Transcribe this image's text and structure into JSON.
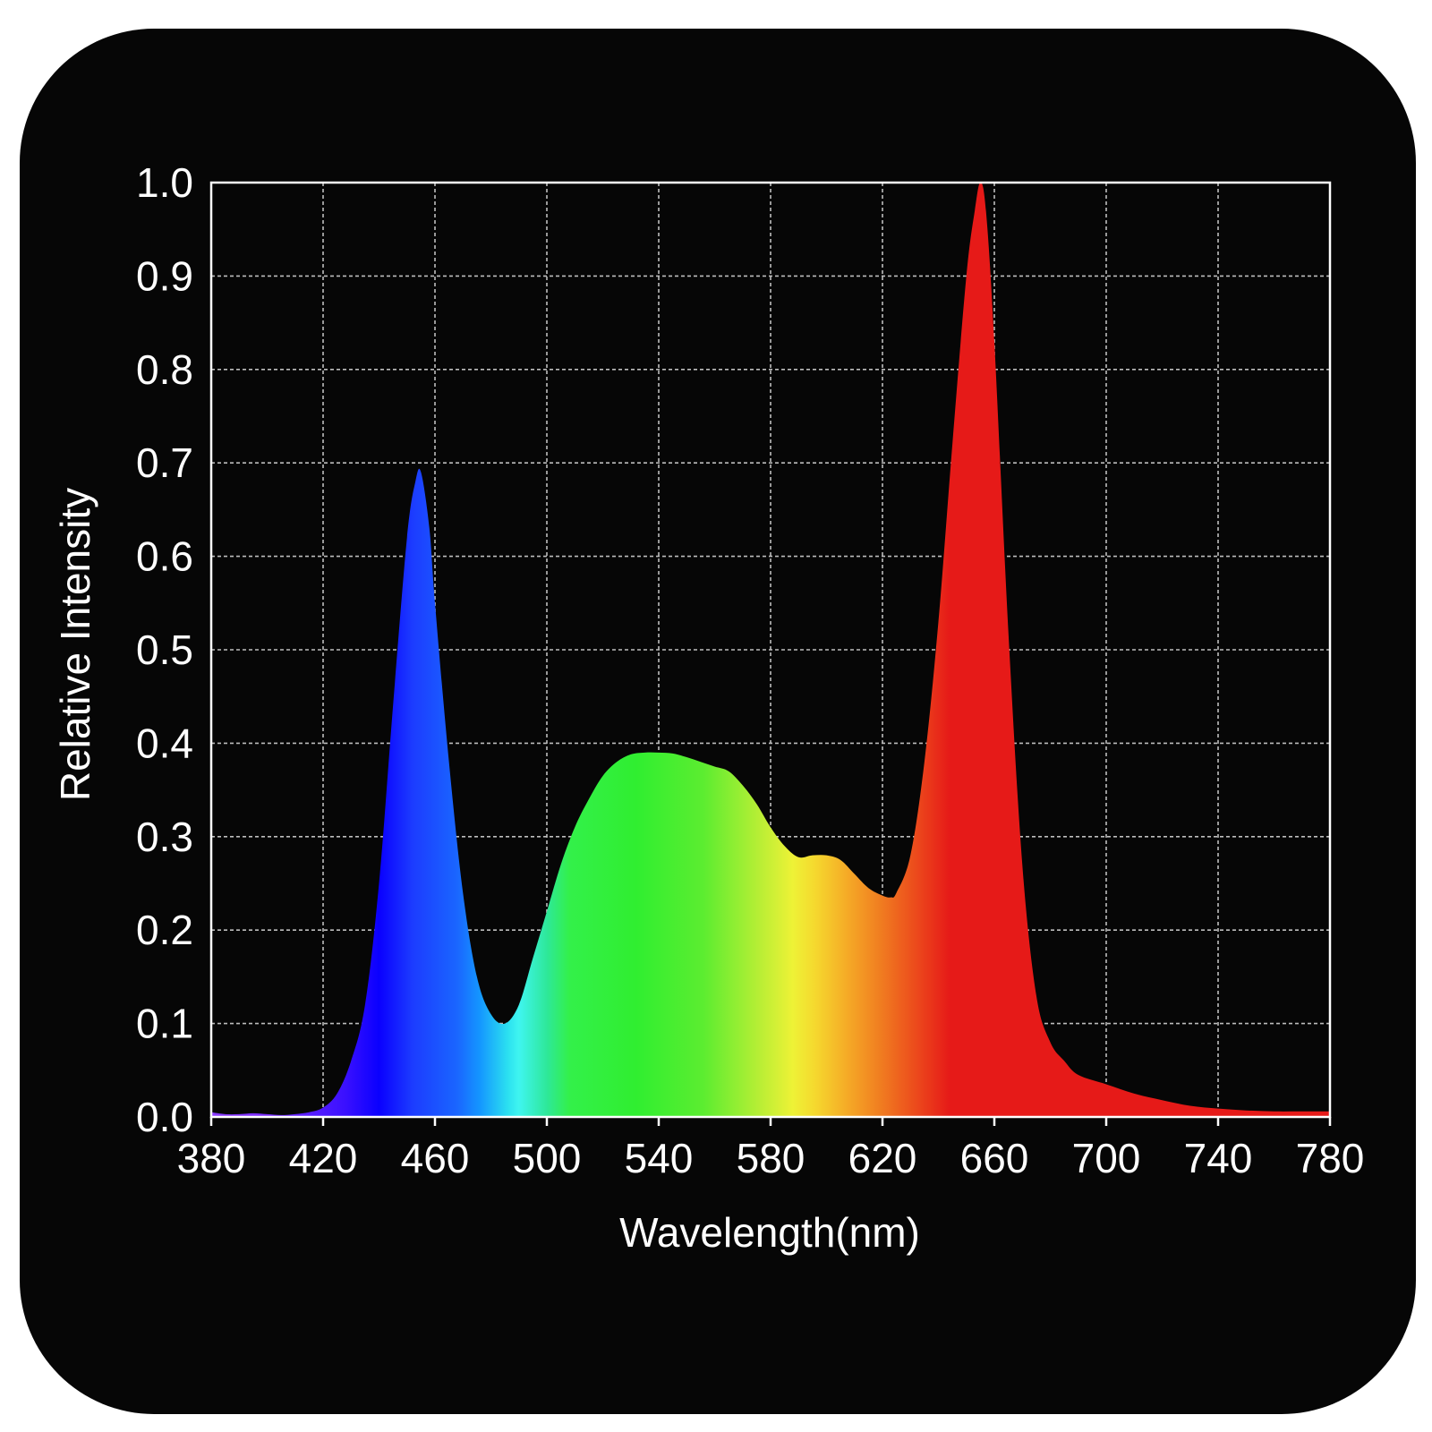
{
  "chart_data": {
    "type": "area",
    "title": "",
    "xlabel": "Wavelength(nm)",
    "ylabel": "Relative Intensity",
    "xlim": [
      380,
      780
    ],
    "ylim": [
      0,
      1.0
    ],
    "x_ticks": [
      "380",
      "420",
      "460",
      "500",
      "540",
      "580",
      "620",
      "660",
      "700",
      "740",
      "780"
    ],
    "y_ticks": [
      "0.0",
      "0.1",
      "0.2",
      "0.3",
      "0.4",
      "0.5",
      "0.6",
      "0.7",
      "0.8",
      "0.9",
      "1.0"
    ],
    "grid": true,
    "legend": "none",
    "colors": {
      "background": "#060606",
      "axes": "#ffffff",
      "grid": "#bdbdbd",
      "fill": "visible-spectrum gradient"
    },
    "series": [
      {
        "x": [
          380,
          385,
          390,
          395,
          400,
          405,
          410,
          415,
          420,
          425,
          430,
          435,
          440,
          445,
          450,
          453,
          455,
          458,
          460,
          465,
          470,
          475,
          480,
          485,
          490,
          495,
          500,
          505,
          510,
          515,
          520,
          525,
          530,
          535,
          540,
          545,
          550,
          555,
          560,
          565,
          570,
          575,
          580,
          585,
          590,
          595,
          600,
          605,
          610,
          615,
          620,
          623,
          625,
          630,
          635,
          640,
          645,
          650,
          653,
          655,
          657,
          660,
          665,
          670,
          675,
          680,
          685,
          690,
          700,
          710,
          720,
          730,
          740,
          750,
          760,
          770,
          780
        ],
        "y": [
          0.005,
          0.003,
          0.003,
          0.004,
          0.003,
          0.002,
          0.003,
          0.005,
          0.01,
          0.025,
          0.06,
          0.12,
          0.25,
          0.44,
          0.62,
          0.68,
          0.69,
          0.63,
          0.55,
          0.38,
          0.24,
          0.15,
          0.11,
          0.1,
          0.12,
          0.17,
          0.22,
          0.27,
          0.31,
          0.34,
          0.365,
          0.38,
          0.388,
          0.39,
          0.39,
          0.389,
          0.385,
          0.38,
          0.375,
          0.37,
          0.355,
          0.335,
          0.31,
          0.29,
          0.278,
          0.28,
          0.28,
          0.275,
          0.26,
          0.245,
          0.237,
          0.235,
          0.24,
          0.28,
          0.38,
          0.53,
          0.72,
          0.9,
          0.97,
          1.0,
          0.97,
          0.83,
          0.52,
          0.27,
          0.13,
          0.08,
          0.06,
          0.045,
          0.035,
          0.025,
          0.018,
          0.012,
          0.009,
          0.007,
          0.006,
          0.006,
          0.006
        ]
      }
    ]
  }
}
